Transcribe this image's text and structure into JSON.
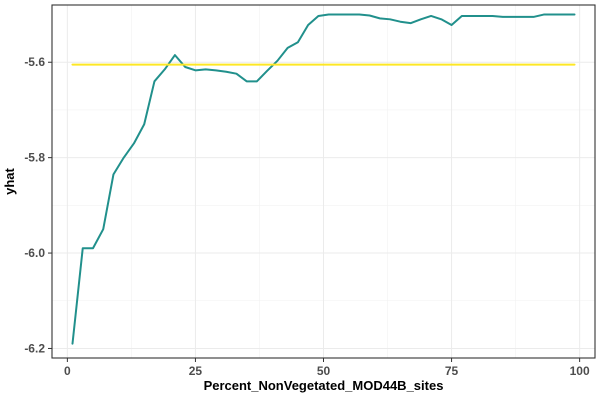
{
  "chart_data": {
    "type": "line",
    "title": "",
    "xlabel": "Percent_NonVegetated_MOD44B_sites",
    "ylabel": "yhat",
    "xlim": [
      -3,
      103
    ],
    "ylim": [
      -6.22,
      -5.48
    ],
    "x_ticks": [
      0,
      25,
      50,
      75,
      100
    ],
    "y_ticks": [
      -6.2,
      -6.0,
      -5.8,
      -5.6
    ],
    "x_tick_labels": [
      "0",
      "25",
      "50",
      "75",
      "100"
    ],
    "y_tick_labels": [
      "-6.2",
      "-6.0",
      "-5.8",
      "-5.6"
    ],
    "grid": true,
    "legend": "none",
    "series": [
      {
        "color": "#21908C",
        "x": [
          1,
          3,
          5,
          7,
          9,
          11,
          13,
          15,
          17,
          19,
          21,
          23,
          25,
          27,
          29,
          31,
          33,
          35,
          37,
          39,
          41,
          43,
          45,
          47,
          49,
          51,
          53,
          55,
          57,
          59,
          61,
          63,
          65,
          67,
          69,
          71,
          73,
          75,
          77,
          79,
          81,
          83,
          85,
          87,
          89,
          91,
          93,
          95,
          97,
          99
        ],
        "y": [
          -6.19,
          -5.99,
          -5.99,
          -5.95,
          -5.835,
          -5.8,
          -5.77,
          -5.73,
          -5.64,
          -5.615,
          -5.585,
          -5.61,
          -5.617,
          -5.615,
          -5.617,
          -5.62,
          -5.624,
          -5.64,
          -5.64,
          -5.618,
          -5.597,
          -5.57,
          -5.558,
          -5.522,
          -5.503,
          -5.5,
          -5.5,
          -5.5,
          -5.5,
          -5.502,
          -5.508,
          -5.51,
          -5.515,
          -5.518,
          -5.51,
          -5.503,
          -5.51,
          -5.522,
          -5.503,
          -5.503,
          -5.503,
          -5.503,
          -5.505,
          -5.505,
          -5.505,
          -5.505,
          -5.5,
          -5.5,
          -5.5,
          -5.5
        ]
      },
      {
        "color": "#FDE725",
        "x": [
          1,
          99
        ],
        "y": [
          -5.605,
          -5.605
        ]
      }
    ]
  }
}
